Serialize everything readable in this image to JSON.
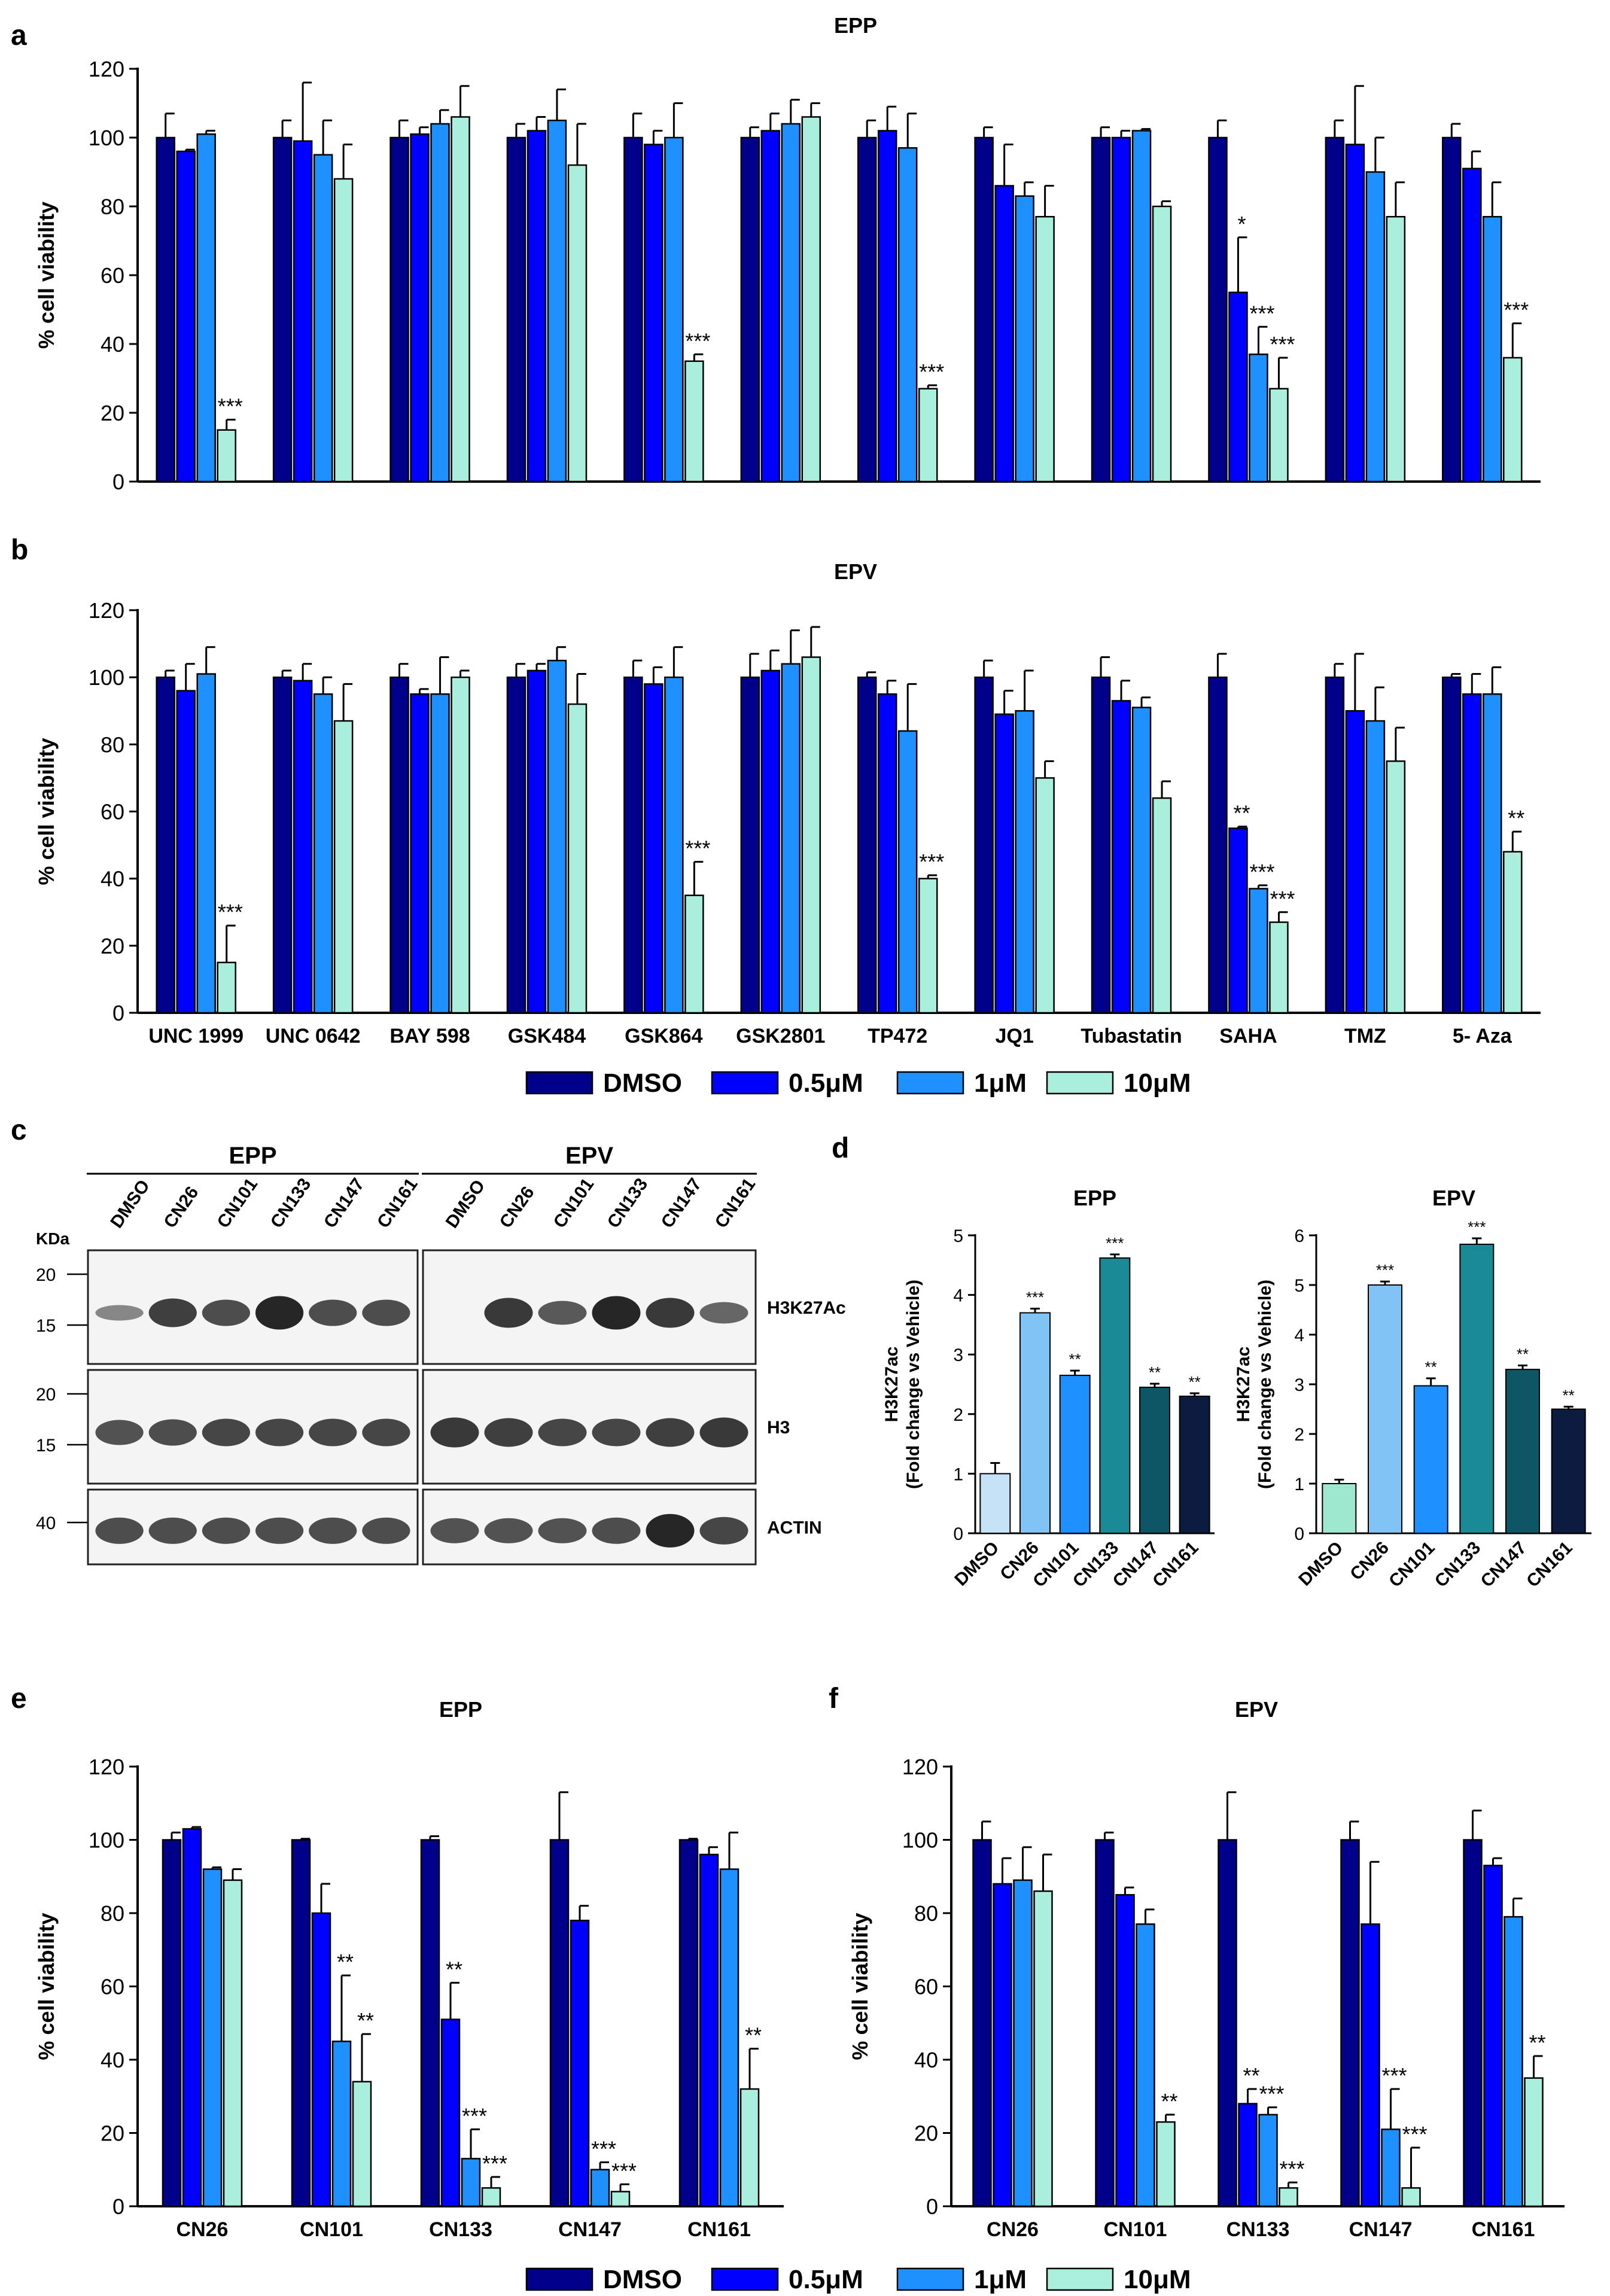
{
  "colors": {
    "DMSO": "#00008b",
    "0.5uM": "#0000ff",
    "1uM": "#1e90ff",
    "10uM": "#aaeedd",
    "axis": "#000000",
    "wb_border": "#222222",
    "wb_band": "#1a1a1a"
  },
  "legend": {
    "items": [
      {
        "label": "DMSO",
        "color": "#00008b"
      },
      {
        "label": "0.5μM",
        "color": "#0000ff"
      },
      {
        "label": "1μM",
        "color": "#1e90ff"
      },
      {
        "label": "10μM",
        "color": "#aaeedd"
      }
    ]
  },
  "panel_c": {
    "letter": "c",
    "groups": [
      {
        "title": "EPP",
        "lanes": [
          "DMSO",
          "CN26",
          "CN101",
          "CN133",
          "CN147",
          "CN161"
        ]
      },
      {
        "title": "EPV",
        "lanes": [
          "DMSO",
          "CN26",
          "CN101",
          "CN133",
          "CN147",
          "CN161"
        ]
      }
    ],
    "kda_label": "KDa",
    "blots": [
      {
        "label": "H3K27Ac",
        "markers": [
          "20",
          "15"
        ],
        "bands_epp": [
          0.25,
          0.8,
          0.7,
          1.0,
          0.7,
          0.7
        ],
        "bands_epv": [
          0.0,
          0.85,
          0.6,
          1.0,
          0.85,
          0.5
        ]
      },
      {
        "label": "H3",
        "markers": [
          "20",
          "15"
        ],
        "bands_epp": [
          0.65,
          0.7,
          0.75,
          0.75,
          0.75,
          0.75
        ],
        "bands_epv": [
          0.85,
          0.8,
          0.75,
          0.75,
          0.8,
          0.85
        ]
      },
      {
        "label": "ACTIN",
        "markers": [
          "40"
        ],
        "bands_epp": [
          0.7,
          0.7,
          0.7,
          0.7,
          0.7,
          0.7
        ],
        "bands_epv": [
          0.65,
          0.65,
          0.65,
          0.7,
          1.0,
          0.75
        ]
      }
    ]
  },
  "chart_data": [
    {
      "id": "a",
      "letter": "a",
      "type": "bar",
      "title": "EPP",
      "ylabel": "% cell viability",
      "ylim": [
        0,
        120
      ],
      "yticks": [
        0,
        20,
        40,
        60,
        80,
        100,
        120
      ],
      "categories": [
        "UNC 1999",
        "UNC 0642",
        "BAY 598",
        "GSK484",
        "GSK864",
        "GSK2801",
        "TP472",
        "JQ1",
        "Tubastatin",
        "SAHA",
        "TMZ",
        "5- Aza"
      ],
      "show_category_labels": false,
      "series": [
        {
          "name": "DMSO",
          "values": [
            100,
            100,
            100,
            100,
            100,
            100,
            100,
            100,
            100,
            100,
            100,
            100
          ],
          "errors": [
            7,
            5,
            5,
            4,
            7,
            3,
            5,
            3,
            3,
            5,
            5,
            4
          ],
          "annotations": [
            "",
            "",
            "",
            "",
            "",
            "",
            "",
            "",
            "",
            "",
            "",
            ""
          ]
        },
        {
          "name": "0.5μM",
          "values": [
            96,
            99,
            101,
            102,
            98,
            102,
            102,
            86,
            100,
            55,
            98,
            91
          ],
          "errors": [
            0.5,
            17,
            2,
            4,
            4,
            5,
            7,
            12,
            2,
            16,
            17,
            5
          ],
          "annotations": [
            "",
            "",
            "",
            "",
            "",
            "",
            "",
            "",
            "",
            "*",
            "",
            ""
          ]
        },
        {
          "name": "1μM",
          "values": [
            101,
            95,
            104,
            105,
            100,
            104,
            97,
            83,
            102,
            37,
            90,
            77
          ],
          "errors": [
            1,
            10,
            4,
            9,
            10,
            7,
            10,
            4,
            0.5,
            8,
            10,
            10
          ],
          "annotations": [
            "",
            "",
            "",
            "",
            "",
            "",
            "",
            "",
            "",
            "***",
            "",
            ""
          ]
        },
        {
          "name": "10μM",
          "values": [
            15,
            88,
            106,
            92,
            35,
            106,
            27,
            77,
            80,
            27,
            77,
            36
          ],
          "errors": [
            3,
            10,
            9,
            12,
            2,
            4,
            1,
            9,
            1.5,
            9,
            10,
            10
          ],
          "annotations": [
            "***",
            "",
            "",
            "",
            "***",
            "",
            "***",
            "",
            "",
            "***",
            "",
            "***"
          ]
        }
      ]
    },
    {
      "id": "b",
      "letter": "b",
      "type": "bar",
      "title": "EPV",
      "ylabel": "% cell viability",
      "ylim": [
        0,
        120
      ],
      "yticks": [
        0,
        20,
        40,
        60,
        80,
        100,
        120
      ],
      "categories": [
        "UNC 1999",
        "UNC 0642",
        "BAY 598",
        "GSK484",
        "GSK864",
        "GSK2801",
        "TP472",
        "JQ1",
        "Tubastatin",
        "SAHA",
        "TMZ",
        "5- Aza"
      ],
      "show_category_labels": true,
      "series": [
        {
          "name": "DMSO",
          "values": [
            100,
            100,
            100,
            100,
            100,
            100,
            100,
            100,
            100,
            100,
            100,
            100
          ],
          "errors": [
            2,
            2,
            4,
            4,
            5,
            7,
            1.5,
            5,
            6,
            7,
            4,
            1
          ],
          "annotations": [
            "",
            "",
            "",
            "",
            "",
            "",
            "",
            "",
            "",
            "",
            "",
            ""
          ]
        },
        {
          "name": "0.5μM",
          "values": [
            96,
            99,
            95,
            102,
            98,
            102,
            95,
            89,
            93,
            55,
            90,
            95
          ],
          "errors": [
            8,
            5,
            1.5,
            2,
            5,
            6,
            4,
            7,
            6,
            0.5,
            17,
            6
          ],
          "annotations": [
            "",
            "",
            "",
            "",
            "",
            "",
            "",
            "",
            "",
            "**",
            "",
            ""
          ]
        },
        {
          "name": "1μM",
          "values": [
            101,
            95,
            95,
            105,
            100,
            104,
            84,
            90,
            91,
            37,
            87,
            95
          ],
          "errors": [
            8,
            5,
            11,
            4,
            9,
            10,
            14,
            12,
            3,
            1,
            10,
            8
          ],
          "annotations": [
            "",
            "",
            "",
            "",
            "",
            "",
            "",
            "",
            "",
            "***",
            "",
            ""
          ]
        },
        {
          "name": "10μM",
          "values": [
            15,
            87,
            100,
            92,
            35,
            106,
            40,
            70,
            64,
            27,
            75,
            48
          ],
          "errors": [
            11,
            11,
            2,
            9,
            10,
            9,
            1,
            5,
            5,
            3,
            10,
            6
          ],
          "annotations": [
            "***",
            "",
            "",
            "",
            "***",
            "",
            "***",
            "",
            "",
            "***",
            "",
            "**"
          ]
        }
      ]
    },
    {
      "id": "d_epp",
      "letter": "d",
      "type": "bar",
      "title": "EPP",
      "ylabel": "H3K27ac",
      "ylabel2": "(Fold change vs Vehicle)",
      "ylim": [
        0,
        5
      ],
      "yticks": [
        0,
        1,
        2,
        3,
        4,
        5
      ],
      "categories": [
        "DMSO",
        "CN26",
        "CN101",
        "CN133",
        "CN147",
        "CN161"
      ],
      "values": [
        1.0,
        3.7,
        2.65,
        4.62,
        2.45,
        2.3
      ],
      "errors": [
        0.18,
        0.07,
        0.08,
        0.06,
        0.06,
        0.05
      ],
      "annotations": [
        "",
        "***",
        "**",
        "***",
        "**",
        "**"
      ],
      "bar_colors": [
        "#c6e2f7",
        "#82c3f5",
        "#1e90ff",
        "#1a8a96",
        "#0e5566",
        "#0b1c40"
      ]
    },
    {
      "id": "d_epv",
      "type": "bar",
      "title": "EPV",
      "ylabel": "H3K27ac",
      "ylabel2": "(Fold change vs Vehicle)",
      "ylim": [
        0,
        6
      ],
      "yticks": [
        0,
        1,
        2,
        3,
        4,
        5,
        6
      ],
      "categories": [
        "DMSO",
        "CN26",
        "CN101",
        "CN133",
        "CN147",
        "CN161"
      ],
      "values": [
        1.0,
        5.0,
        2.97,
        5.82,
        3.3,
        2.5
      ],
      "errors": [
        0.08,
        0.07,
        0.15,
        0.12,
        0.08,
        0.05
      ],
      "annotations": [
        "",
        "***",
        "**",
        "***",
        "**",
        "**"
      ],
      "bar_colors": [
        "#9ee8d0",
        "#82c3f5",
        "#1e90ff",
        "#1a8a96",
        "#0e5566",
        "#0b1c40"
      ]
    },
    {
      "id": "e",
      "letter": "e",
      "type": "bar",
      "title": "EPP",
      "ylabel": "% cell viability",
      "ylim": [
        0,
        120
      ],
      "yticks": [
        0,
        20,
        40,
        60,
        80,
        100,
        120
      ],
      "categories": [
        "CN26",
        "CN101",
        "CN133",
        "CN147",
        "CN161"
      ],
      "show_category_labels": true,
      "series": [
        {
          "name": "DMSO",
          "values": [
            100,
            100,
            100,
            100,
            100
          ],
          "errors": [
            2,
            0.3,
            1,
            13,
            0.3
          ],
          "annotations": [
            "",
            "",
            "",
            "",
            ""
          ]
        },
        {
          "name": "0.5μM",
          "values": [
            103,
            80,
            51,
            78,
            96
          ],
          "errors": [
            0.5,
            8,
            10,
            4,
            2
          ],
          "annotations": [
            "",
            "",
            "**",
            "",
            ""
          ]
        },
        {
          "name": "1μM",
          "values": [
            92,
            45,
            13,
            10,
            92
          ],
          "errors": [
            0.5,
            18,
            8,
            2,
            10
          ],
          "annotations": [
            "",
            "**",
            "***",
            "***",
            ""
          ]
        },
        {
          "name": "10μM",
          "values": [
            89,
            34,
            5,
            4,
            32
          ],
          "errors": [
            3,
            13,
            3,
            2,
            11
          ],
          "annotations": [
            "",
            "**",
            "***",
            "***",
            "**"
          ]
        }
      ]
    },
    {
      "id": "f",
      "letter": "f",
      "type": "bar",
      "title": "EPV",
      "ylabel": "% cell viability",
      "ylim": [
        0,
        120
      ],
      "yticks": [
        0,
        20,
        40,
        60,
        80,
        100,
        120
      ],
      "categories": [
        "CN26",
        "CN101",
        "CN133",
        "CN147",
        "CN161"
      ],
      "show_category_labels": true,
      "series": [
        {
          "name": "DMSO",
          "values": [
            100,
            100,
            100,
            100,
            100
          ],
          "errors": [
            5,
            2,
            13,
            5,
            8
          ],
          "annotations": [
            "",
            "",
            "",
            "",
            ""
          ]
        },
        {
          "name": "0.5μM",
          "values": [
            88,
            85,
            28,
            77,
            93
          ],
          "errors": [
            7,
            2,
            4,
            17,
            2
          ],
          "annotations": [
            "",
            "",
            "**",
            "",
            ""
          ]
        },
        {
          "name": "1μM",
          "values": [
            89,
            77,
            25,
            21,
            79
          ],
          "errors": [
            9,
            4,
            2,
            11,
            5
          ],
          "annotations": [
            "",
            "",
            "***",
            "***",
            ""
          ]
        },
        {
          "name": "10μM",
          "values": [
            86,
            23,
            5,
            5,
            35
          ],
          "errors": [
            10,
            2,
            1.5,
            11,
            6
          ],
          "annotations": [
            "",
            "**",
            "***",
            "***",
            "**"
          ]
        }
      ]
    }
  ]
}
